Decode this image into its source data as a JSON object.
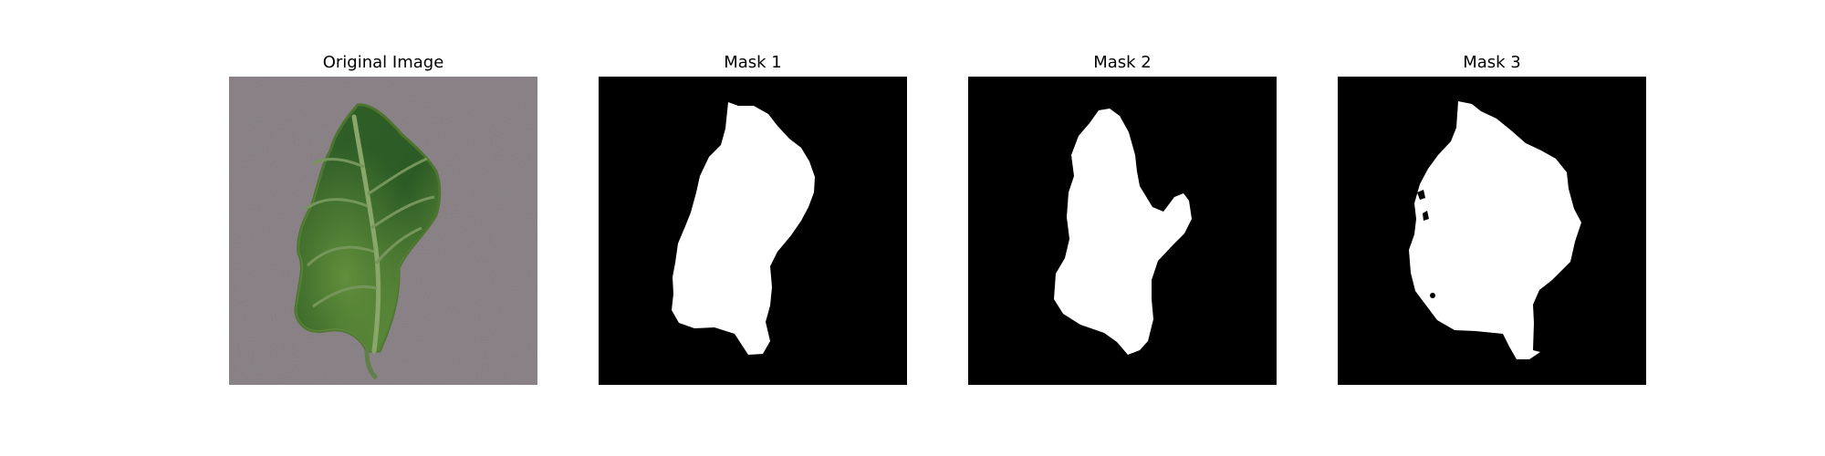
{
  "figure": {
    "panels": [
      {
        "title": "Original Image"
      },
      {
        "title": "Mask 1"
      },
      {
        "title": "Mask 2"
      },
      {
        "title": "Mask 3"
      }
    ]
  },
  "colors": {
    "background": "#8f878c",
    "leaf_dark": "#2c5a25",
    "leaf_light": "#6d9a41",
    "mask_background": "#000000",
    "mask_foreground": "#ffffff"
  }
}
